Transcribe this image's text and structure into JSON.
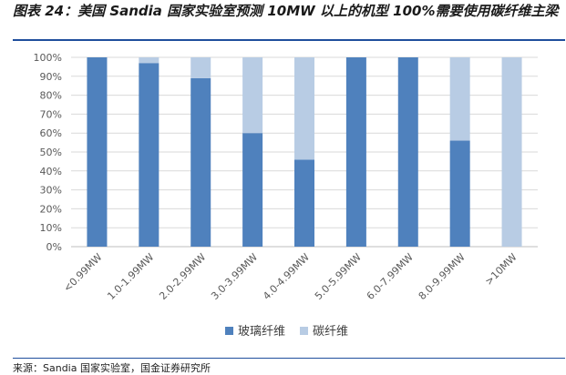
{
  "caption": "图表 24：美国 Sandia 国家实验室预测 10MW 以上的机型 100%需要使用碳纤维主梁",
  "source": "来源：Sandia 国家实验室，国金证券研究所",
  "colors": {
    "glass": "#4f81bd",
    "carbon": "#b8cce4",
    "grid": "#d9d9d9",
    "rule": "#1f4e9c"
  },
  "chart_data": {
    "type": "bar",
    "stacked": true,
    "categories": [
      "<0.99MW",
      "1.0-1.99MW",
      "2.0-2.99MW",
      "3.0-3.99MW",
      "4.0-4.99MW",
      "5.0-5.99MW",
      "6.0-7.99MW",
      "8.0-9.99MW",
      ">10MW"
    ],
    "series": [
      {
        "name": "玻璃纤维",
        "values": [
          100,
          97,
          89,
          60,
          46,
          100,
          100,
          56,
          0
        ]
      },
      {
        "name": "碳纤维",
        "values": [
          0,
          3,
          11,
          40,
          54,
          0,
          0,
          44,
          100
        ]
      }
    ],
    "yticks": [
      "0%",
      "10%",
      "20%",
      "30%",
      "40%",
      "50%",
      "60%",
      "70%",
      "80%",
      "90%",
      "100%"
    ],
    "ylim": [
      0,
      100
    ],
    "grid": true,
    "legend_position": "bottom"
  }
}
